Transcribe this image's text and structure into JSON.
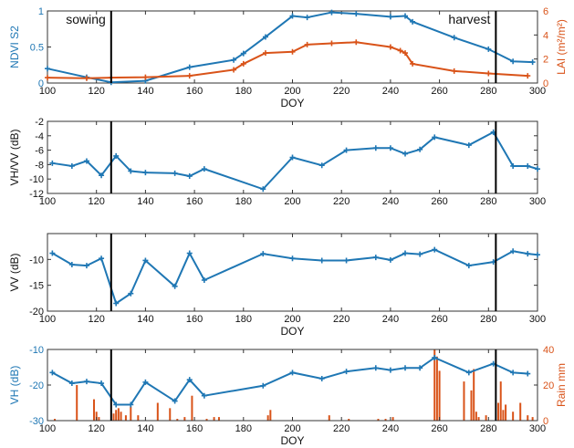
{
  "colors": {
    "blue": "#1f77b4",
    "orange": "#d95319",
    "black": "#000000"
  },
  "markers": {
    "sowing": {
      "label": "sowing",
      "doy": 126
    },
    "harvest": {
      "label": "harvest",
      "doy": 283
    }
  },
  "chart_data": [
    {
      "type": "line",
      "xlabel": "DOY",
      "ylabel": "NDVI S2",
      "y2label": "LAI (m²/m²)",
      "xlim": [
        100,
        300
      ],
      "ylim": [
        0,
        1
      ],
      "y2lim": [
        0,
        6
      ],
      "xticks": [
        100,
        120,
        140,
        160,
        180,
        200,
        220,
        240,
        260,
        280,
        300
      ],
      "yticks": [
        0,
        0.5,
        1
      ],
      "ytick_labels": [
        "0",
        "0.5",
        "1"
      ],
      "y2ticks": [
        0,
        2,
        4,
        6
      ],
      "grid": false,
      "series": [
        {
          "axis": "left",
          "color": "blue",
          "marker": "plus",
          "points": [
            [
              100,
              0.2
            ],
            [
              116,
              0.08
            ],
            [
              126,
              0.01
            ],
            [
              140,
              0.03
            ],
            [
              158,
              0.22
            ],
            [
              176,
              0.32
            ],
            [
              180,
              0.41
            ],
            [
              189,
              0.64
            ],
            [
              200,
              0.93
            ],
            [
              206,
              0.91
            ],
            [
              216,
              0.98
            ],
            [
              226,
              0.96
            ],
            [
              240,
              0.92
            ],
            [
              246,
              0.93
            ],
            [
              249,
              0.85
            ],
            [
              266,
              0.63
            ],
            [
              280,
              0.47
            ],
            [
              290,
              0.3
            ],
            [
              298,
              0.29
            ]
          ]
        },
        {
          "axis": "right",
          "color": "orange",
          "marker": "plus",
          "points": [
            [
              100,
              0.45
            ],
            [
              116,
              0.4
            ],
            [
              126,
              0.45
            ],
            [
              140,
              0.48
            ],
            [
              158,
              0.6
            ],
            [
              176,
              1.1
            ],
            [
              180,
              1.6
            ],
            [
              189,
              2.5
            ],
            [
              200,
              2.6
            ],
            [
              206,
              3.2
            ],
            [
              216,
              3.3
            ],
            [
              226,
              3.4
            ],
            [
              240,
              3.0
            ],
            [
              244,
              2.7
            ],
            [
              246,
              2.5
            ],
            [
              249,
              1.6
            ],
            [
              266,
              1.0
            ],
            [
              280,
              0.8
            ],
            [
              296,
              0.6
            ]
          ]
        }
      ]
    },
    {
      "type": "line",
      "xlabel": "",
      "ylabel": "VH/VV (dB)",
      "xlim": [
        100,
        300
      ],
      "ylim": [
        -12,
        -2
      ],
      "xticks": [
        100,
        120,
        140,
        160,
        180,
        200,
        220,
        240,
        260,
        280,
        300
      ],
      "yticks": [
        -12,
        -10,
        -8,
        -6,
        -4,
        -2
      ],
      "grid": false,
      "series": [
        {
          "axis": "left",
          "color": "blue",
          "marker": "plus",
          "points": [
            [
              102,
              -7.8
            ],
            [
              110,
              -8.2
            ],
            [
              116,
              -7.5
            ],
            [
              122,
              -9.5
            ],
            [
              128,
              -6.8
            ],
            [
              134,
              -8.9
            ],
            [
              140,
              -9.1
            ],
            [
              152,
              -9.2
            ],
            [
              158,
              -9.6
            ],
            [
              164,
              -8.6
            ],
            [
              188,
              -11.4
            ],
            [
              200,
              -7.0
            ],
            [
              212,
              -8.1
            ],
            [
              222,
              -6.0
            ],
            [
              234,
              -5.7
            ],
            [
              240,
              -5.7
            ],
            [
              246,
              -6.5
            ],
            [
              252,
              -5.9
            ],
            [
              258,
              -4.2
            ],
            [
              272,
              -5.3
            ],
            [
              282,
              -3.5
            ],
            [
              290,
              -8.2
            ],
            [
              296,
              -8.2
            ],
            [
              300,
              -8.6
            ]
          ]
        }
      ]
    },
    {
      "type": "line",
      "xlabel": "DOY",
      "ylabel": "VV (dB)",
      "xlim": [
        100,
        300
      ],
      "ylim": [
        -20,
        -5
      ],
      "xticks": [
        100,
        120,
        140,
        160,
        180,
        200,
        220,
        240,
        260,
        280,
        300
      ],
      "yticks": [
        -20,
        -15,
        -10
      ],
      "grid": false,
      "series": [
        {
          "axis": "left",
          "color": "blue",
          "marker": "plus",
          "points": [
            [
              102,
              -8.8
            ],
            [
              110,
              -11.0
            ],
            [
              116,
              -11.2
            ],
            [
              122,
              -9.8
            ],
            [
              128,
              -18.5
            ],
            [
              134,
              -16.6
            ],
            [
              140,
              -10.2
            ],
            [
              152,
              -15.2
            ],
            [
              158,
              -8.8
            ],
            [
              164,
              -14.0
            ],
            [
              188,
              -8.9
            ],
            [
              200,
              -9.8
            ],
            [
              212,
              -10.2
            ],
            [
              222,
              -10.2
            ],
            [
              234,
              -9.6
            ],
            [
              240,
              -10.1
            ],
            [
              246,
              -8.8
            ],
            [
              252,
              -9.0
            ],
            [
              258,
              -8.1
            ],
            [
              272,
              -11.2
            ],
            [
              282,
              -10.5
            ],
            [
              290,
              -8.4
            ],
            [
              296,
              -8.9
            ],
            [
              300,
              -9.1
            ]
          ]
        }
      ]
    },
    {
      "type": "line",
      "xlabel": "DOY",
      "ylabel": "VH (dB)",
      "y2label": "Rain mm",
      "xlim": [
        100,
        300
      ],
      "ylim": [
        -30,
        -10
      ],
      "y2lim": [
        0,
        40
      ],
      "xticks": [
        100,
        120,
        140,
        160,
        180,
        200,
        220,
        240,
        260,
        280,
        300
      ],
      "yticks": [
        -30,
        -20,
        -10
      ],
      "y2ticks": [
        0,
        20,
        40
      ],
      "grid": false,
      "series": [
        {
          "axis": "left",
          "color": "blue",
          "marker": "plus",
          "points": [
            [
              102,
              -16.5
            ],
            [
              110,
              -19.5
            ],
            [
              116,
              -19.0
            ],
            [
              122,
              -19.5
            ],
            [
              128,
              -25.5
            ],
            [
              134,
              -25.5
            ],
            [
              140,
              -19.2
            ],
            [
              152,
              -24.5
            ],
            [
              158,
              -18.5
            ],
            [
              164,
              -23.0
            ],
            [
              188,
              -20.2
            ],
            [
              200,
              -16.5
            ],
            [
              212,
              -18.2
            ],
            [
              222,
              -16.2
            ],
            [
              234,
              -15.2
            ],
            [
              240,
              -15.8
            ],
            [
              246,
              -15.2
            ],
            [
              252,
              -15.2
            ],
            [
              258,
              -12.3
            ],
            [
              272,
              -16.5
            ],
            [
              282,
              -14.0
            ],
            [
              290,
              -16.5
            ],
            [
              296,
              -16.8
            ]
          ]
        },
        {
          "axis": "right",
          "color": "orange",
          "type": "bar",
          "name": "Rain mm",
          "points": [
            [
              103,
              1
            ],
            [
              112,
              20
            ],
            [
              119,
              12
            ],
            [
              120,
              5
            ],
            [
              121,
              2
            ],
            [
              127,
              4
            ],
            [
              128,
              6
            ],
            [
              129,
              7
            ],
            [
              130,
              5
            ],
            [
              132,
              3
            ],
            [
              134,
              8
            ],
            [
              137,
              3
            ],
            [
              145,
              10
            ],
            [
              150,
              7
            ],
            [
              153,
              1
            ],
            [
              156,
              2
            ],
            [
              159,
              14
            ],
            [
              165,
              1
            ],
            [
              168,
              2
            ],
            [
              170,
              2
            ],
            [
              190,
              3
            ],
            [
              191,
              6
            ],
            [
              215,
              3
            ],
            [
              223,
              1
            ],
            [
              235,
              1
            ],
            [
              238,
              1
            ],
            [
              241,
              2
            ],
            [
              258,
              40
            ],
            [
              259,
              36
            ],
            [
              260,
              28
            ],
            [
              270,
              22
            ],
            [
              273,
              17
            ],
            [
              274,
              29
            ],
            [
              275,
              5
            ],
            [
              276,
              2
            ],
            [
              279,
              3
            ],
            [
              284,
              10
            ],
            [
              285,
              22
            ],
            [
              286,
              6
            ],
            [
              287,
              9
            ],
            [
              290,
              5
            ],
            [
              293,
              10
            ],
            [
              296,
              3
            ],
            [
              298,
              2
            ]
          ]
        }
      ]
    }
  ]
}
